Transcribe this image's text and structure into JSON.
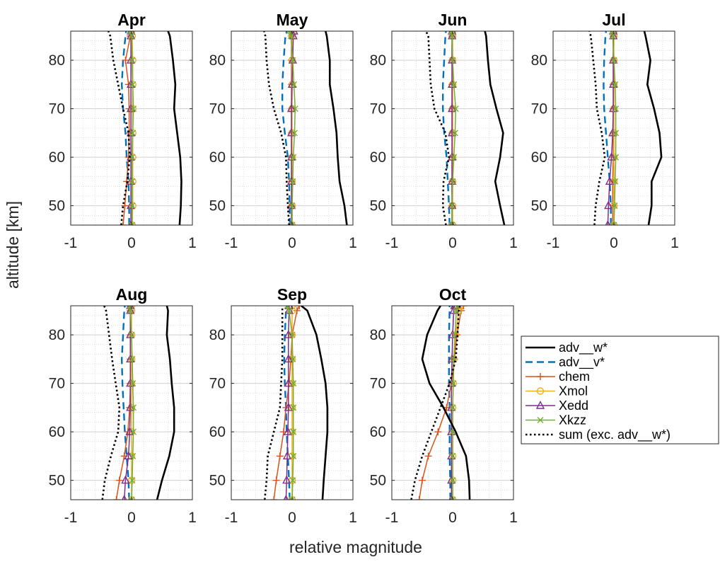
{
  "figure": {
    "ylabel": "altitude [km]",
    "xlabel": "relative magnitude"
  },
  "legend": {
    "entries": [
      {
        "key": "adv_w",
        "label": "adv__w*"
      },
      {
        "key": "adv_v",
        "label": "adv__v*"
      },
      {
        "key": "chem",
        "label": "chem"
      },
      {
        "key": "xmol",
        "label": "Xmol"
      },
      {
        "key": "xedd",
        "label": "Xedd"
      },
      {
        "key": "xkzz",
        "label": "Xkzz"
      },
      {
        "key": "sum",
        "label": "sum (exc. adv__w*)"
      }
    ]
  },
  "chart_data": {
    "type": "line",
    "xlim": [
      -1,
      1
    ],
    "ylim": [
      46,
      86
    ],
    "xticks": [
      "-1",
      "0",
      "1"
    ],
    "yticks": [
      "50",
      "60",
      "70",
      "80"
    ],
    "grid": true,
    "minor_grid": true,
    "legend_placement": "bottom-right",
    "altitudes": [
      46,
      50,
      55,
      60,
      65,
      70,
      75,
      80,
      85,
      86
    ],
    "series_styles": {
      "adv_w": {
        "color": "#000000",
        "style": "solid",
        "marker": "none"
      },
      "adv_v": {
        "color": "#0072BD",
        "style": "dashed",
        "marker": "none"
      },
      "chem": {
        "color": "#D95319",
        "style": "solid",
        "marker": "plus"
      },
      "xmol": {
        "color": "#EDB120",
        "style": "solid",
        "marker": "circle"
      },
      "xedd": {
        "color": "#7E2F8E",
        "style": "solid",
        "marker": "triangle"
      },
      "xkzz": {
        "color": "#77AC30",
        "style": "solid",
        "marker": "x"
      },
      "sum": {
        "color": "#000000",
        "style": "dotted",
        "marker": "none"
      }
    },
    "panels": [
      {
        "title": "Apr",
        "series": {
          "adv_w": [
            0.79,
            0.81,
            0.82,
            0.8,
            0.75,
            0.7,
            0.72,
            0.68,
            0.63,
            0.6
          ],
          "adv_v": [
            -0.04,
            -0.04,
            -0.05,
            -0.08,
            -0.1,
            -0.14,
            -0.16,
            -0.14,
            -0.1,
            -0.09
          ],
          "chem": [
            -0.14,
            -0.11,
            -0.08,
            -0.05,
            -0.04,
            -0.04,
            -0.05,
            -0.1,
            -0.02,
            0.0
          ],
          "xmol": [
            0.01,
            0.02,
            0.02,
            0.02,
            0.02,
            0.02,
            0.02,
            0.02,
            0.01,
            0.0
          ],
          "xedd": [
            -0.01,
            -0.01,
            -0.01,
            -0.01,
            -0.01,
            -0.01,
            -0.01,
            -0.01,
            -0.01,
            -0.01
          ],
          "xkzz": [
            0.01,
            0.01,
            0.01,
            0.01,
            0.02,
            0.03,
            0.02,
            0.01,
            0.0,
            -0.02
          ],
          "sum": [
            -0.17,
            -0.14,
            -0.07,
            -0.03,
            -0.05,
            -0.14,
            -0.22,
            -0.3,
            -0.35,
            -0.38
          ]
        }
      },
      {
        "title": "May",
        "series": {
          "adv_w": [
            0.9,
            0.86,
            0.78,
            0.75,
            0.73,
            0.68,
            0.62,
            0.62,
            0.57,
            0.55
          ],
          "adv_v": [
            -0.04,
            -0.04,
            -0.05,
            -0.07,
            -0.12,
            -0.16,
            -0.16,
            -0.14,
            -0.11,
            -0.09
          ],
          "chem": [
            0.0,
            -0.01,
            -0.01,
            -0.01,
            -0.01,
            -0.01,
            -0.01,
            -0.01,
            -0.01,
            -0.01
          ],
          "xmol": [
            0.0,
            0.0,
            0.0,
            0.0,
            0.0,
            0.0,
            0.0,
            0.0,
            0.0,
            0.0
          ],
          "xedd": [
            -0.01,
            -0.01,
            -0.01,
            -0.01,
            -0.01,
            -0.01,
            0.0,
            0.01,
            0.02,
            0.03
          ],
          "xkzz": [
            0.0,
            0.0,
            0.01,
            0.02,
            0.04,
            0.05,
            0.03,
            0.01,
            -0.02,
            -0.05
          ],
          "sum": [
            -0.05,
            -0.07,
            -0.09,
            -0.1,
            -0.18,
            -0.3,
            -0.38,
            -0.42,
            -0.44,
            -0.46
          ]
        }
      },
      {
        "title": "Jun",
        "series": {
          "adv_w": [
            0.85,
            0.78,
            0.7,
            0.78,
            0.83,
            0.72,
            0.62,
            0.58,
            0.55,
            0.53
          ],
          "adv_v": [
            -0.05,
            -0.06,
            -0.08,
            -0.1,
            -0.14,
            -0.16,
            -0.16,
            -0.14,
            -0.12,
            -0.11
          ],
          "chem": [
            -0.01,
            -0.01,
            -0.01,
            -0.01,
            -0.01,
            -0.01,
            -0.01,
            -0.01,
            -0.01,
            -0.01
          ],
          "xmol": [
            0.0,
            0.0,
            0.0,
            0.0,
            0.0,
            0.0,
            0.0,
            0.0,
            0.0,
            0.0
          ],
          "xedd": [
            -0.01,
            -0.01,
            -0.01,
            -0.01,
            -0.01,
            -0.01,
            -0.01,
            -0.01,
            -0.01,
            -0.01
          ],
          "xkzz": [
            -0.01,
            -0.01,
            0.0,
            0.02,
            0.04,
            0.05,
            0.02,
            0.0,
            -0.01,
            -0.02
          ],
          "sum": [
            -0.11,
            -0.16,
            -0.15,
            -0.06,
            -0.12,
            -0.3,
            -0.36,
            -0.38,
            -0.4,
            -0.44
          ]
        }
      },
      {
        "title": "Jul",
        "series": {
          "adv_w": [
            0.57,
            0.62,
            0.62,
            0.78,
            0.75,
            0.66,
            0.55,
            0.6,
            0.52,
            0.5
          ],
          "adv_v": [
            -0.05,
            -0.05,
            -0.07,
            -0.1,
            -0.13,
            -0.16,
            -0.17,
            -0.16,
            -0.14,
            -0.13
          ],
          "chem": [
            -0.02,
            -0.02,
            -0.02,
            -0.01,
            -0.01,
            -0.01,
            -0.01,
            -0.01,
            -0.01,
            -0.01
          ],
          "xmol": [
            0.0,
            0.0,
            0.0,
            0.0,
            0.0,
            0.0,
            0.0,
            0.0,
            0.0,
            0.0
          ],
          "xedd": [
            -0.1,
            -0.09,
            -0.07,
            -0.04,
            -0.02,
            -0.01,
            -0.01,
            -0.01,
            -0.01,
            -0.01
          ],
          "xkzz": [
            0.0,
            0.01,
            0.02,
            0.03,
            0.03,
            0.03,
            0.02,
            0.0,
            -0.02,
            -0.03
          ],
          "sum": [
            -0.32,
            -0.3,
            -0.24,
            -0.15,
            -0.2,
            -0.28,
            -0.3,
            -0.34,
            -0.38,
            -0.4
          ]
        }
      },
      {
        "title": "Aug",
        "series": {
          "adv_w": [
            0.42,
            0.5,
            0.62,
            0.7,
            0.7,
            0.66,
            0.63,
            0.58,
            0.6,
            0.58
          ],
          "adv_v": [
            -0.04,
            -0.05,
            -0.08,
            -0.11,
            -0.13,
            -0.15,
            -0.16,
            -0.14,
            -0.12,
            -0.11
          ],
          "chem": [
            -0.25,
            -0.2,
            -0.12,
            -0.06,
            -0.03,
            -0.02,
            -0.02,
            -0.02,
            -0.02,
            -0.02
          ],
          "xmol": [
            0.0,
            0.0,
            0.0,
            0.0,
            0.0,
            0.0,
            0.0,
            0.0,
            0.0,
            0.0
          ],
          "xedd": [
            -0.12,
            -0.1,
            -0.05,
            -0.03,
            -0.02,
            -0.02,
            -0.02,
            -0.02,
            -0.02,
            -0.02
          ],
          "xkzz": [
            0.0,
            0.01,
            0.02,
            0.03,
            0.03,
            0.02,
            0.01,
            0.0,
            -0.02,
            -0.03
          ],
          "sum": [
            -0.48,
            -0.44,
            -0.34,
            -0.22,
            -0.2,
            -0.26,
            -0.32,
            -0.37,
            -0.42,
            -0.45
          ]
        }
      },
      {
        "title": "Sep",
        "series": {
          "adv_w": [
            0.5,
            0.52,
            0.55,
            0.58,
            0.58,
            0.55,
            0.48,
            0.4,
            0.25,
            0.15
          ],
          "adv_v": [
            -0.04,
            -0.05,
            -0.07,
            -0.09,
            -0.1,
            -0.12,
            -0.13,
            -0.12,
            -0.1,
            -0.09
          ],
          "chem": [
            -0.3,
            -0.26,
            -0.2,
            -0.14,
            -0.1,
            -0.05,
            -0.02,
            0.0,
            0.08,
            0.12
          ],
          "xmol": [
            0.0,
            0.0,
            0.0,
            0.0,
            0.0,
            0.0,
            0.0,
            0.0,
            0.0,
            0.0
          ],
          "xedd": [
            -0.1,
            -0.09,
            -0.08,
            -0.07,
            -0.06,
            -0.06,
            -0.06,
            -0.06,
            -0.05,
            -0.05
          ],
          "xkzz": [
            0.0,
            0.01,
            0.02,
            0.02,
            0.02,
            0.02,
            0.01,
            0.0,
            -0.05,
            -0.08
          ],
          "sum": [
            -0.45,
            -0.42,
            -0.4,
            -0.3,
            -0.2,
            -0.18,
            -0.16,
            -0.16,
            -0.16,
            -0.16
          ]
        }
      },
      {
        "title": "Oct",
        "series": {
          "adv_w": [
            0.28,
            0.27,
            0.22,
            0.05,
            -0.15,
            -0.38,
            -0.5,
            -0.42,
            -0.25,
            -0.2
          ],
          "adv_v": [
            -0.04,
            -0.04,
            -0.05,
            -0.05,
            -0.05,
            -0.06,
            -0.06,
            -0.06,
            -0.05,
            -0.05
          ],
          "chem": [
            -0.55,
            -0.5,
            -0.4,
            -0.24,
            -0.1,
            -0.02,
            0.03,
            0.07,
            0.14,
            0.18
          ],
          "xmol": [
            0.0,
            0.0,
            0.0,
            0.0,
            0.0,
            0.01,
            0.02,
            0.05,
            0.1,
            0.12
          ],
          "xedd": [
            -0.02,
            -0.02,
            -0.02,
            -0.02,
            -0.02,
            -0.02,
            -0.01,
            0.0,
            0.02,
            0.03
          ],
          "xkzz": [
            0.0,
            0.0,
            0.0,
            0.0,
            0.0,
            0.01,
            0.02,
            0.04,
            0.06,
            0.08
          ],
          "sum": [
            -0.68,
            -0.62,
            -0.5,
            -0.35,
            -0.2,
            -0.05,
            0.05,
            0.08,
            0.1,
            0.12
          ]
        }
      }
    ]
  }
}
